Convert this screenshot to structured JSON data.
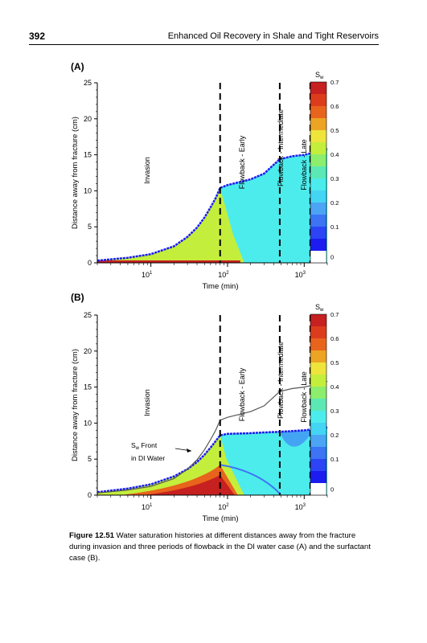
{
  "header": {
    "page_number": "392",
    "book_title": "Enhanced Oil Recovery in Shale and Tight Reservoirs"
  },
  "figure": {
    "panels": [
      {
        "label": "(A)",
        "ylabel": "Distance away from fracture (cm)",
        "xlabel": "Time (min)",
        "yticks": [
          "0",
          "5",
          "10",
          "15",
          "20",
          "25"
        ],
        "xticks": [
          "10",
          "10",
          "10"
        ],
        "xtick_exp": [
          "1",
          "2",
          "3"
        ],
        "periods": [
          "Invasion",
          "Flowback - Early",
          "Flowback - Intermediate",
          "Flowback - Late"
        ],
        "annotation": ""
      },
      {
        "label": "(B)",
        "ylabel": "Distance away from fracture (cm)",
        "xlabel": "Time (min)",
        "yticks": [
          "0",
          "5",
          "10",
          "15",
          "20",
          "25"
        ],
        "xticks": [
          "10",
          "10",
          "10"
        ],
        "xtick_exp": [
          "1",
          "2",
          "3"
        ],
        "periods": [
          "Invasion",
          "Flowback - Early",
          "Flowback - Intermediate",
          "Flowback - Late"
        ],
        "annotation_line1": "Sw Front",
        "annotation_line2": "in DI Water"
      }
    ],
    "colorbar": {
      "title_main": "S",
      "title_sub": "w",
      "ticks": [
        "0.7",
        "0.6",
        "0.5",
        "0.4",
        "0.3",
        "0.2",
        "0.1",
        "0"
      ],
      "colors": [
        "#c62020",
        "#dd3c1c",
        "#e8641c",
        "#eca424",
        "#eee43c",
        "#c4ee3c",
        "#8cee6c",
        "#5ce8b4",
        "#4cecec",
        "#44d4f4",
        "#4ca4f4",
        "#3c74f4",
        "#2c44f4",
        "#1c1cf0",
        "#ffffff"
      ]
    }
  },
  "caption": {
    "label": "Figure 12.51",
    "text": "Water saturation histories at different distances away from the fracture during invasion and three periods of flowback in the DI water case (A) and the surfactant case (B)."
  },
  "chart_data": [
    {
      "type": "heatmap",
      "title": "(A)",
      "xlabel": "Time (min)",
      "ylabel": "Distance away from fracture (cm)",
      "xscale": "log",
      "xlim": [
        2,
        2000
      ],
      "ylim": [
        0,
        25
      ],
      "period_boundaries_min": [
        80,
        480,
        1200
      ],
      "colorbar": {
        "label": "Sw",
        "range": [
          0,
          0.7
        ]
      },
      "front_curve": {
        "x": [
          2,
          5,
          10,
          20,
          30,
          40,
          50,
          60,
          70,
          80,
          100,
          200,
          300,
          480,
          700,
          1000,
          1200,
          1500,
          2000
        ],
        "y": [
          0.3,
          0.7,
          1.2,
          2.3,
          3.6,
          4.9,
          6.3,
          7.7,
          9.0,
          10.4,
          10.8,
          11.6,
          12.4,
          14.4,
          14.8,
          15.0,
          15.2,
          15.5,
          15.8
        ]
      }
    },
    {
      "type": "heatmap",
      "title": "(B)",
      "xlabel": "Time (min)",
      "ylabel": "Distance away from fracture (cm)",
      "xscale": "log",
      "xlim": [
        2,
        2000
      ],
      "ylim": [
        0,
        25
      ],
      "period_boundaries_min": [
        80,
        480,
        1200
      ],
      "colorbar": {
        "label": "Sw",
        "range": [
          0,
          0.7
        ]
      },
      "annotation": "Sw Front in DI Water",
      "front_curve": {
        "x": [
          2,
          5,
          10,
          20,
          30,
          40,
          50,
          60,
          70,
          80,
          100,
          200,
          300,
          480,
          700,
          1000,
          1200,
          1500,
          2000
        ],
        "y": [
          0.4,
          0.9,
          1.5,
          2.6,
          3.6,
          4.6,
          5.6,
          6.6,
          7.5,
          8.3,
          8.5,
          8.6,
          8.7,
          8.8,
          8.9,
          9.0,
          9.1,
          9.2,
          9.4
        ]
      },
      "di_front_curve": {
        "x": [
          2,
          5,
          10,
          20,
          30,
          40,
          50,
          60,
          70,
          80,
          100,
          200,
          300,
          480,
          700,
          1000,
          1200,
          1500,
          2000
        ],
        "y": [
          0.3,
          0.7,
          1.2,
          2.3,
          3.6,
          4.9,
          6.3,
          7.7,
          9.0,
          10.4,
          10.8,
          11.6,
          12.4,
          14.4,
          14.8,
          15.0,
          15.2,
          15.5,
          15.8
        ]
      }
    }
  ]
}
